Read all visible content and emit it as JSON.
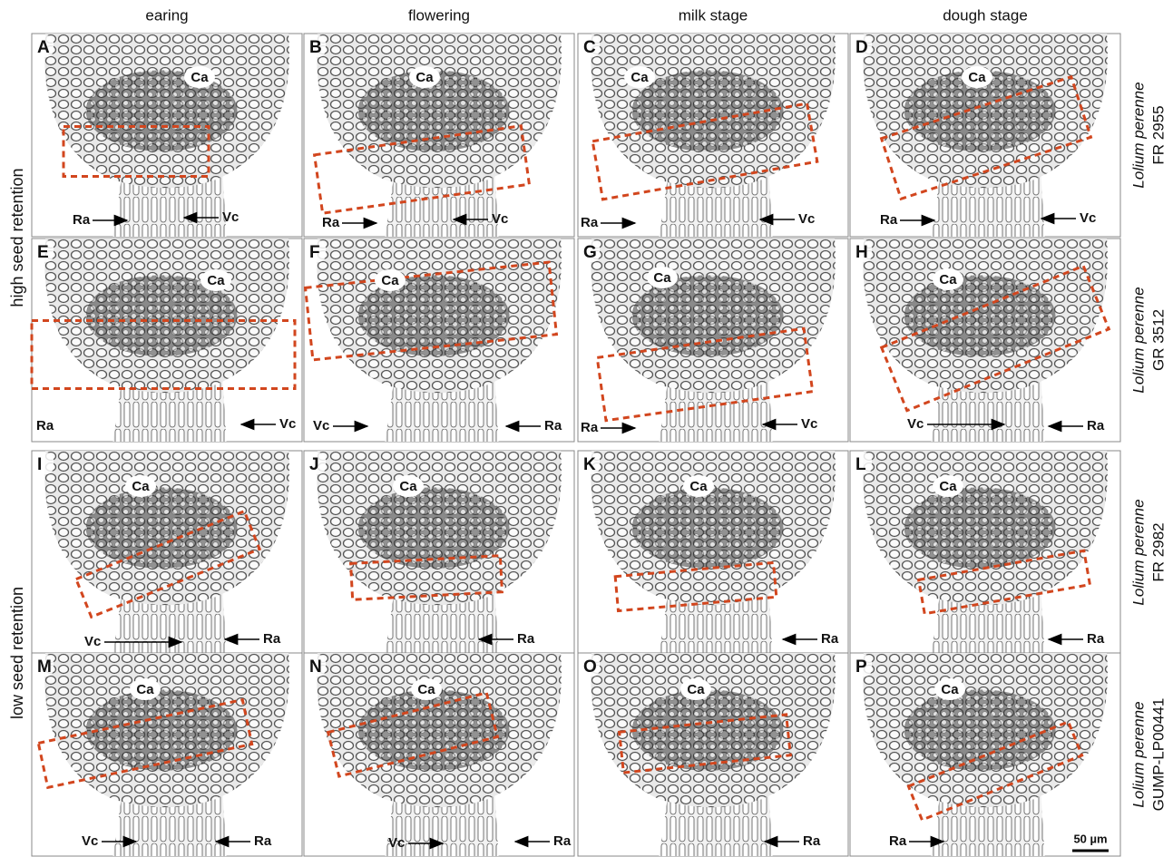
{
  "columns": [
    "earing",
    "flowering",
    "milk stage",
    "dough stage"
  ],
  "row_groups": [
    "high seed retention",
    "low seed retention"
  ],
  "rows": [
    {
      "species": "Lolium perenne",
      "accession": "FR 2955"
    },
    {
      "species": "Lolium perenne",
      "accession": "GR 3512"
    },
    {
      "species": "Lolium perenne",
      "accession": "FR 2982"
    },
    {
      "species": "Lolium perenne",
      "accession": "GUMP-LP00441"
    }
  ],
  "panels": [
    {
      "letter": "A",
      "labels": [
        "Ca",
        "Ra",
        "Vc"
      ]
    },
    {
      "letter": "B",
      "labels": [
        "Ca",
        "Ra",
        "Vc"
      ]
    },
    {
      "letter": "C",
      "labels": [
        "Ca",
        "Ra",
        "Vc"
      ]
    },
    {
      "letter": "D",
      "labels": [
        "Ca",
        "Ra",
        "Vc"
      ]
    },
    {
      "letter": "E",
      "labels": [
        "Ca",
        "Ra",
        "Vc"
      ]
    },
    {
      "letter": "F",
      "labels": [
        "Ca",
        "Vc",
        "Ra"
      ]
    },
    {
      "letter": "G",
      "labels": [
        "Ca",
        "Ra",
        "Vc"
      ]
    },
    {
      "letter": "H",
      "labels": [
        "Ca",
        "Vc",
        "Ra"
      ]
    },
    {
      "letter": "I",
      "labels": [
        "Ca",
        "Vc",
        "Ra"
      ]
    },
    {
      "letter": "J",
      "labels": [
        "Ca",
        "Ra"
      ]
    },
    {
      "letter": "K",
      "labels": [
        "Ca",
        "Ra"
      ]
    },
    {
      "letter": "L",
      "labels": [
        "Ca",
        "Ra"
      ]
    },
    {
      "letter": "M",
      "labels": [
        "Ca",
        "Vc",
        "Ra"
      ]
    },
    {
      "letter": "N",
      "labels": [
        "Ca",
        "Vc",
        "Ra"
      ]
    },
    {
      "letter": "O",
      "labels": [
        "Ca",
        "Ra"
      ]
    },
    {
      "letter": "P",
      "labels": [
        "Ca",
        "Ra"
      ]
    }
  ],
  "scale_bar": "50 µm"
}
